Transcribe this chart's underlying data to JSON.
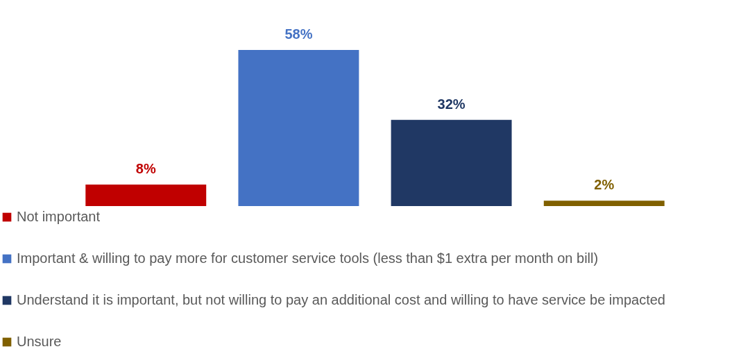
{
  "chart_data": {
    "type": "bar",
    "stacked": true,
    "categories": [
      null,
      null,
      null,
      null
    ],
    "series": [
      {
        "name": "Not important",
        "color": "#c00000",
        "values": [
          8,
          null,
          null,
          null
        ],
        "value_labels": [
          "8%",
          null,
          null,
          null
        ]
      },
      {
        "name": "Important & willing to pay more for customer service tools (less than $1 extra per month on bill)",
        "color": "#4472c4",
        "values": [
          null,
          58,
          null,
          null
        ],
        "value_labels": [
          null,
          "58%",
          null,
          null
        ]
      },
      {
        "name": "Understand it is important, but not willing to pay an additional cost and willing to have service be impacted",
        "color": "#203864",
        "values": [
          null,
          null,
          32,
          null
        ],
        "value_labels": [
          null,
          null,
          "32%",
          null
        ]
      },
      {
        "name": "Unsure",
        "color": "#806000",
        "values": [
          null,
          null,
          null,
          2
        ],
        "value_labels": [
          null,
          null,
          null,
          "2%"
        ]
      }
    ],
    "legend": "bottom"
  }
}
